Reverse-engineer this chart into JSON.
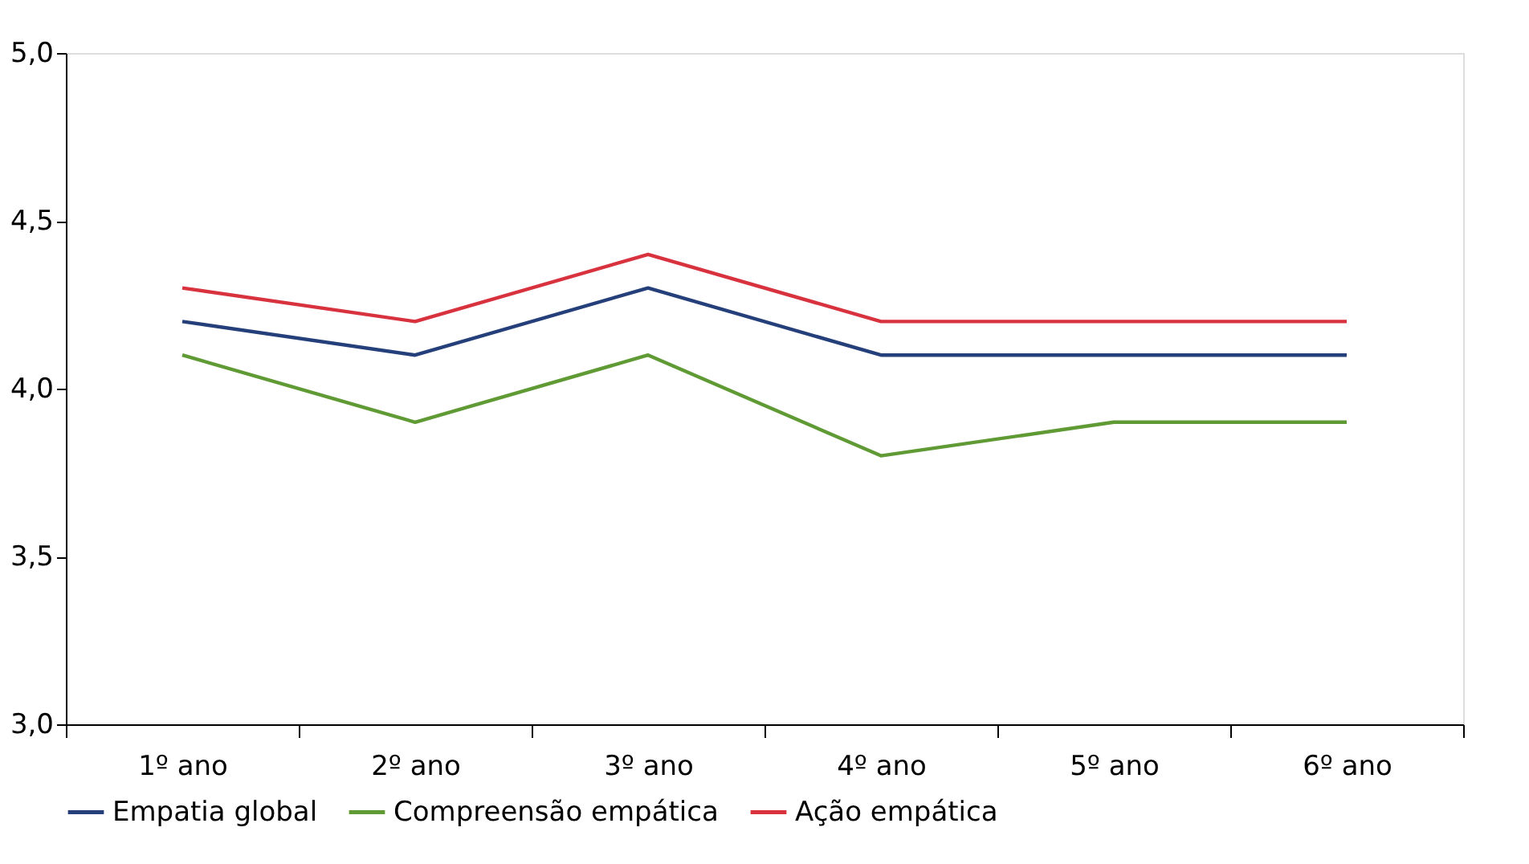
{
  "chart_data": {
    "type": "line",
    "categories": [
      "1º ano",
      "2º ano",
      "3º ano",
      "4º ano",
      "5º ano",
      "6º ano"
    ],
    "series": [
      {
        "name": "Empatia global",
        "color": "#243f7a",
        "values": [
          4.2,
          4.1,
          4.3,
          4.1,
          4.1,
          4.1
        ]
      },
      {
        "name": "Compreensão empática",
        "color": "#5f9a34",
        "values": [
          4.1,
          3.9,
          4.1,
          3.8,
          3.9,
          3.9
        ]
      },
      {
        "name": "Ação empática",
        "color": "#d8323e",
        "values": [
          4.3,
          4.2,
          4.4,
          4.2,
          4.2,
          4.2
        ]
      }
    ],
    "ylim": [
      3.0,
      5.0
    ],
    "yticks": [
      {
        "value": 3.0,
        "label": "3,0"
      },
      {
        "value": 3.5,
        "label": "3,5"
      },
      {
        "value": 4.0,
        "label": "4,0"
      },
      {
        "value": 4.5,
        "label": "4,5"
      },
      {
        "value": 5.0,
        "label": "5,0"
      }
    ],
    "grid": false,
    "legend": "bottom",
    "marker": "none",
    "line_style": "solid"
  }
}
